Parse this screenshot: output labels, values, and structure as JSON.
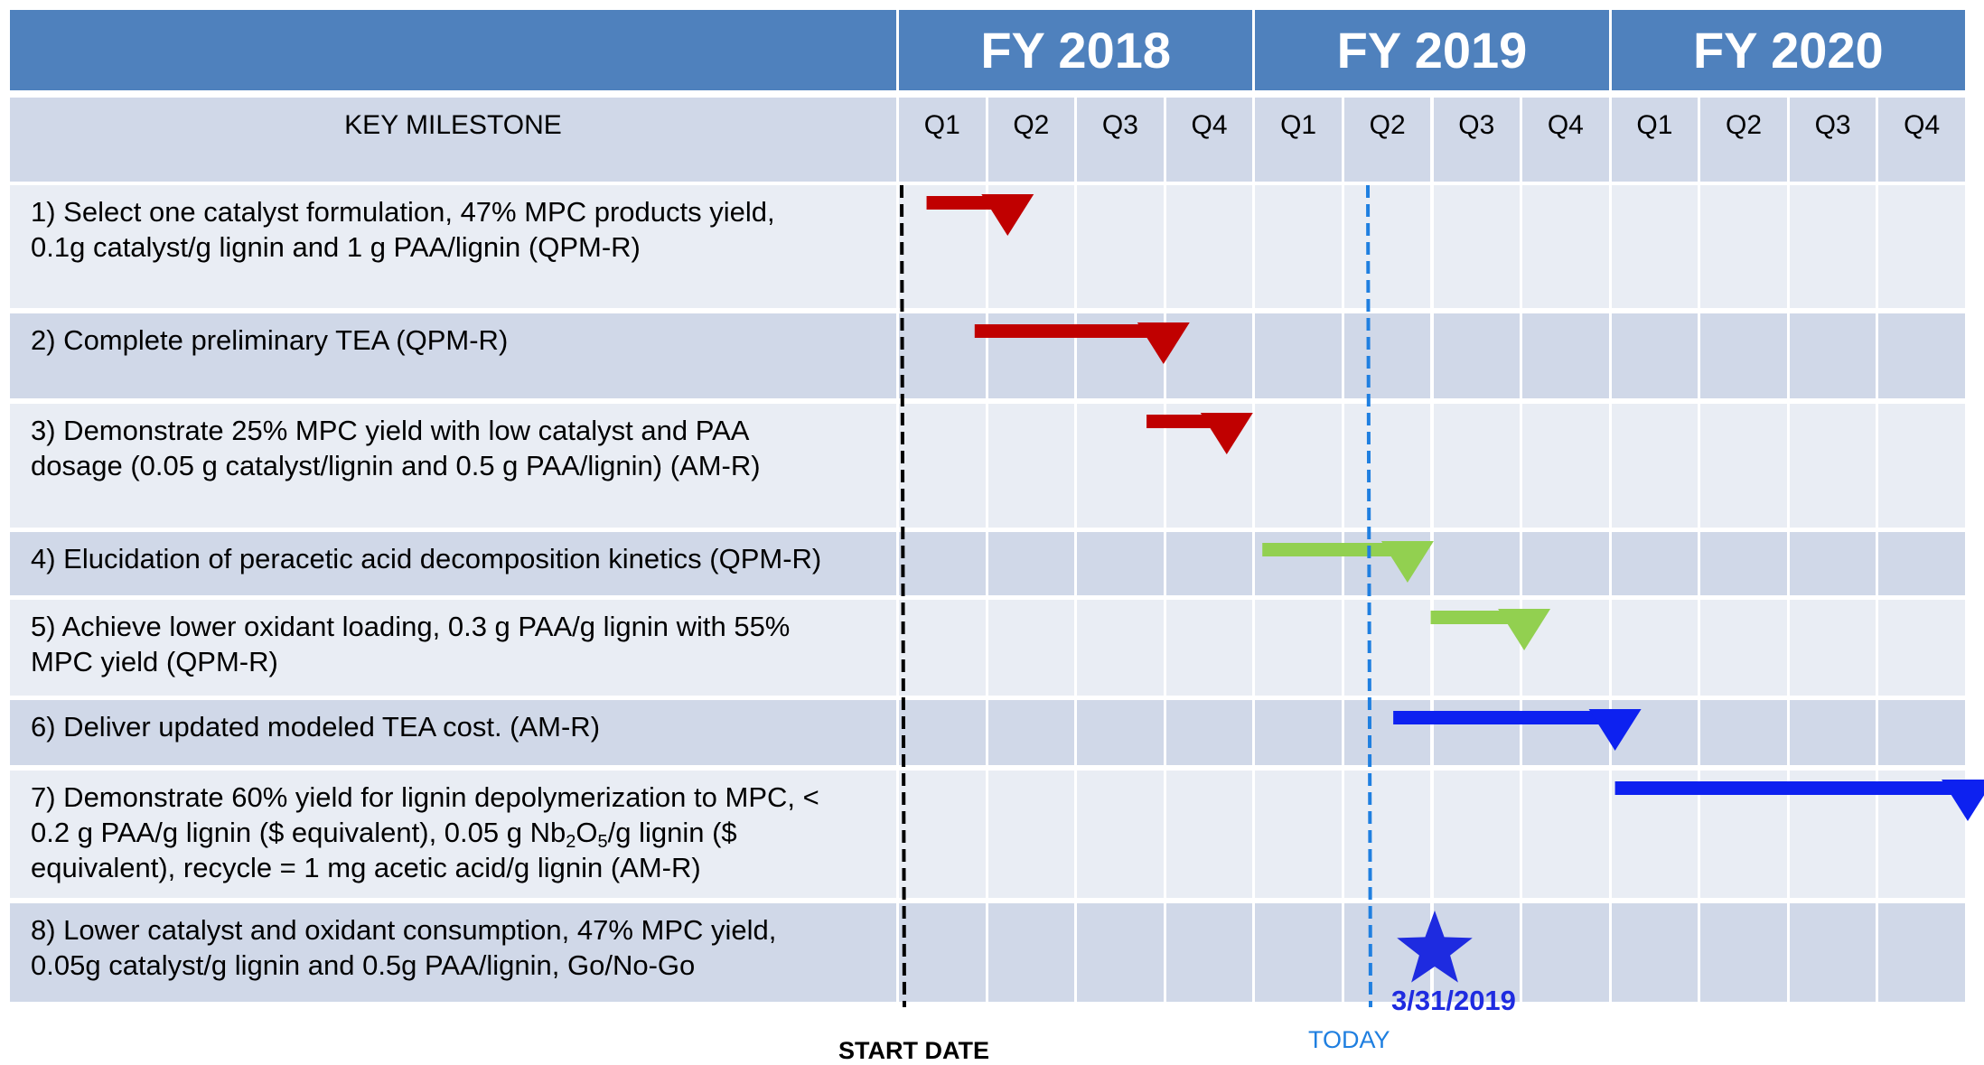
{
  "header": {
    "fiscal_years": [
      "FY 2018",
      "FY 2019",
      "FY 2020"
    ],
    "column_title": "KEY MILESTONE",
    "quarters": [
      "Q1",
      "Q2",
      "Q3",
      "Q4",
      "Q1",
      "Q2",
      "Q3",
      "Q4",
      "Q1",
      "Q2",
      "Q3",
      "Q4"
    ]
  },
  "milestones": [
    [
      "1) Select one catalyst formulation, 47% MPC products yield,",
      "0.1g catalyst/g lignin and 1 g PAA/lignin  (QPM-R)"
    ],
    [
      "2) Complete preliminary TEA (QPM-R)"
    ],
    [
      "3) Demonstrate 25% MPC yield with low catalyst and PAA",
      "dosage (0.05 g catalyst/lignin and 0.5 g PAA/lignin)  (AM-R)"
    ],
    [
      "4) Elucidation of peracetic acid decomposition kinetics (QPM-R)"
    ],
    [
      "5) Achieve lower oxidant loading, 0.3 g PAA/g lignin with 55%",
      "MPC yield (QPM-R)"
    ],
    [
      "6) Deliver updated modeled TEA cost. (AM-R)"
    ],
    [
      "7) Demonstrate 60% yield for lignin depolymerization to MPC, <",
      [
        "0.2 g PAA/g lignin ($ equivalent), 0.05 g Nb",
        "2",
        "O",
        "5",
        "/g lignin ($"
      ],
      "equivalent), recycle = 1 mg acetic acid/g lignin (AM-R)"
    ],
    [
      "8) Lower catalyst and oxidant consumption, 47% MPC yield,",
      "0.05g catalyst/g lignin and 0.5g PAA/lignin,  Go/No-Go"
    ]
  ],
  "footer": {
    "start_label": "START DATE",
    "today_label": "TODAY",
    "today_date": "3/31/2019"
  }
}
